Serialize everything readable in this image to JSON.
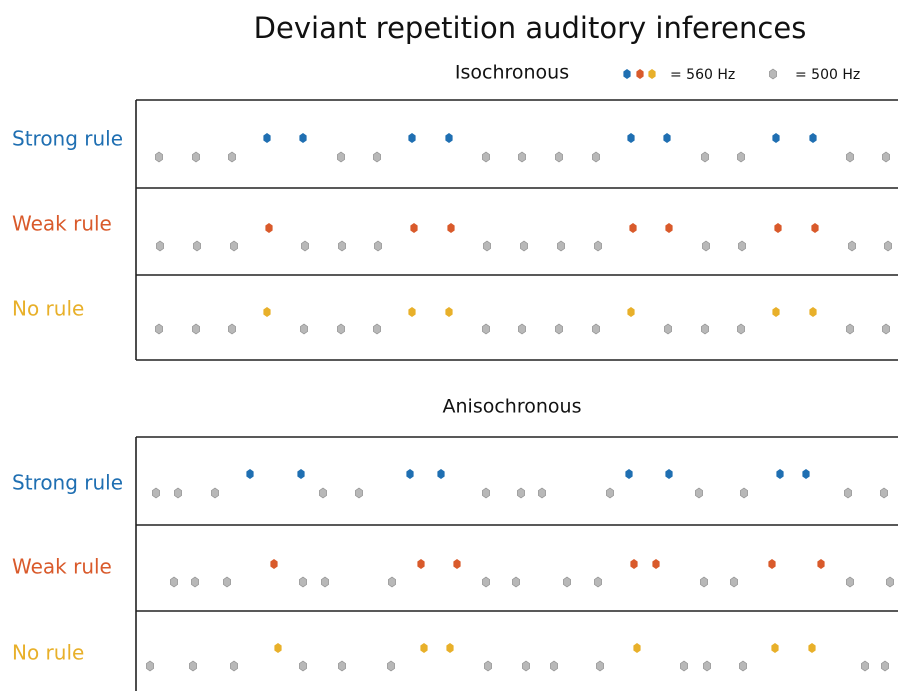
{
  "title": "Deviant repetition auditory inferences",
  "legend": {
    "deviant": "= 560 Hz",
    "standard": "= 500 Hz"
  },
  "sections": [
    {
      "title": "Isochronous",
      "rows": [
        "Strong rule",
        "Weak rule",
        "No rule"
      ]
    },
    {
      "title": "Anisochronous",
      "rows": [
        "Strong rule",
        "Weak rule",
        "No rule"
      ]
    }
  ]
}
